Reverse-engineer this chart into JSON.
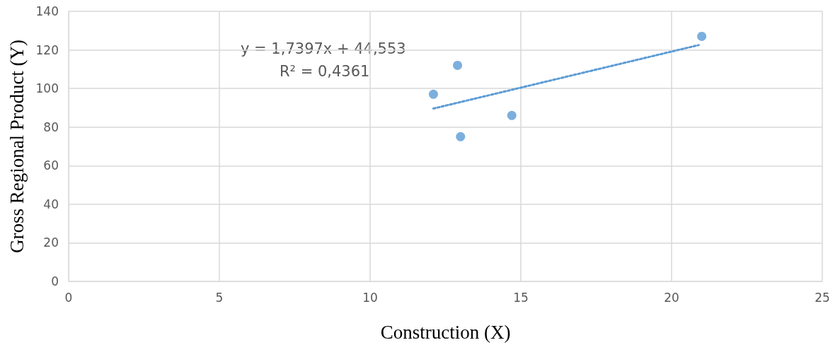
{
  "chart_data": {
    "type": "scatter",
    "xlabel": "Construction (X)",
    "ylabel": "Gross Regional Product (Y)",
    "xlim": [
      0,
      25
    ],
    "xticks": [
      0,
      5,
      10,
      15,
      20,
      25
    ],
    "ylim": [
      0,
      140
    ],
    "yticks": [
      0,
      20,
      40,
      60,
      80,
      100,
      120,
      140
    ],
    "grid": true,
    "marker": "circle",
    "annotations": [
      "y = 1,7397x + 44,553",
      "R² = 0,4361"
    ],
    "series": [
      {
        "color": "#5b9bd5",
        "x": [
          12.1,
          12.9,
          13,
          14.7,
          21
        ],
        "values": [
          97,
          112,
          75,
          86,
          127
        ]
      },
      {
        "type": "line",
        "color": "#5b9bd5",
        "line_style": "dotted",
        "marker": "none",
        "x": [
          12.1,
          20.9
        ],
        "values": [
          89.6,
          122.5
        ]
      }
    ]
  }
}
